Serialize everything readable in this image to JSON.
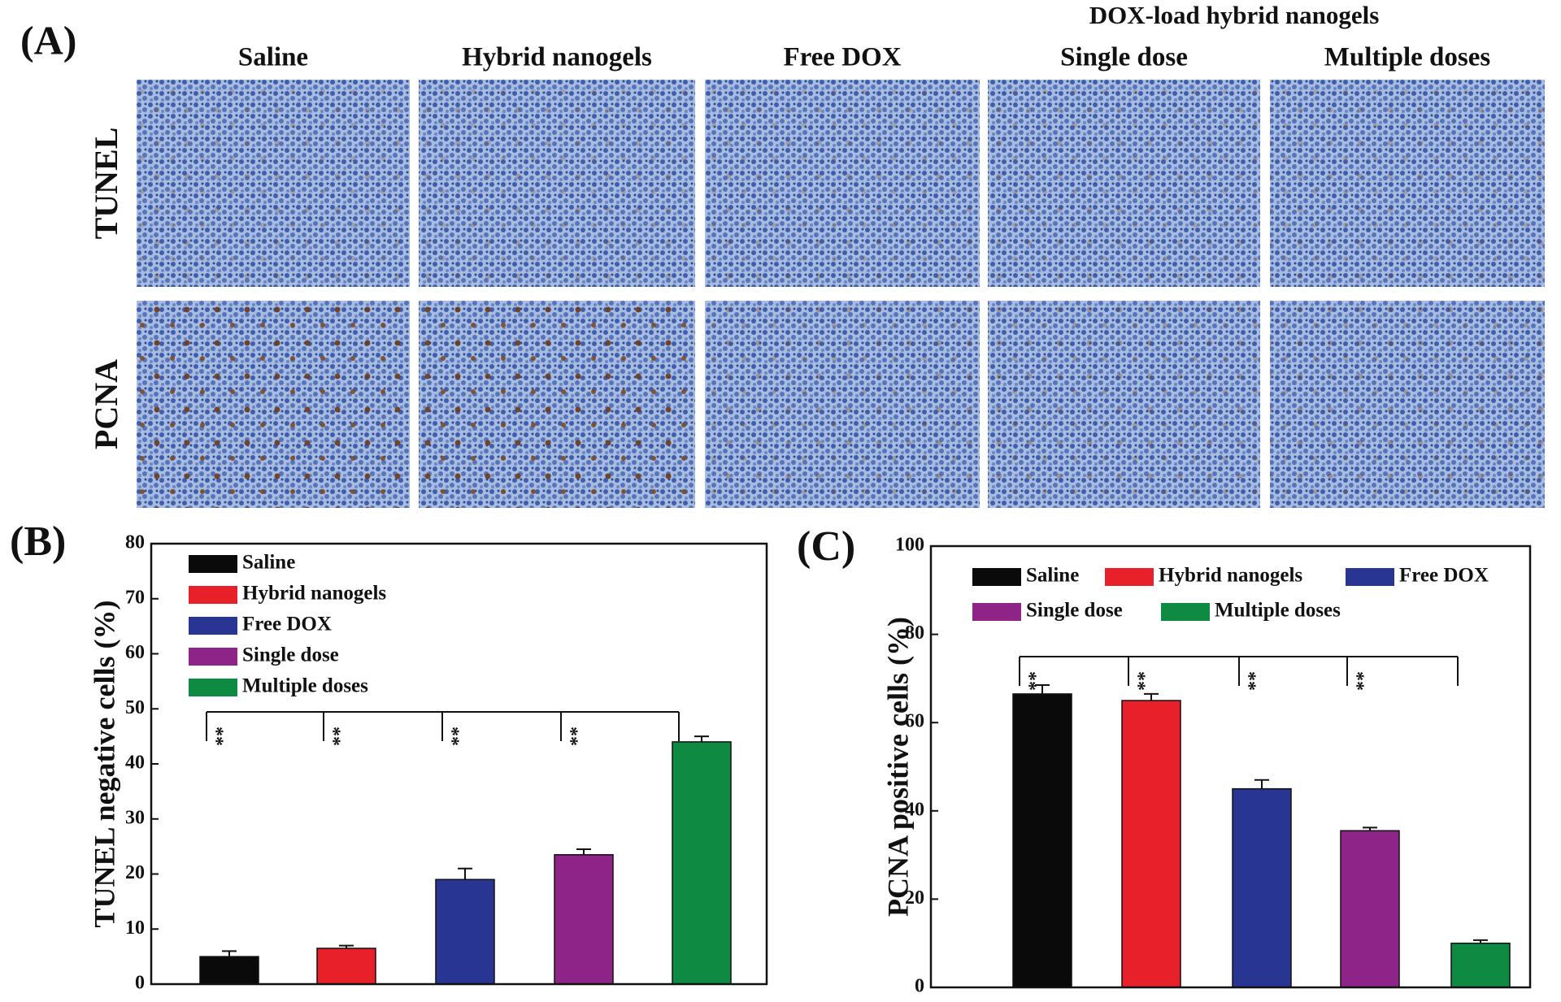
{
  "panel_a": {
    "label": "(A)",
    "group_title": "DOX-load hybrid nanogels",
    "columns": [
      "Saline",
      "Hybrid nanogels",
      "Free DOX",
      "Single dose",
      "Multiple doses"
    ],
    "rows": [
      "TUNEL",
      "PCNA"
    ]
  },
  "chart_data": [
    {
      "type": "bar",
      "panel_label": "(B)",
      "ylabel": "TUNEL negative cells (%)",
      "ylim": [
        0,
        80
      ],
      "yticks": [
        0,
        10,
        20,
        30,
        40,
        50,
        60,
        70,
        80
      ],
      "legend": "upper left",
      "significance": [
        "**",
        "**",
        "**",
        "**"
      ],
      "series": [
        {
          "name": "Saline",
          "color": "#0a0a0a",
          "values": [
            5
          ],
          "errors": [
            1
          ]
        },
        {
          "name": "Hybrid nanogels",
          "color": "#e8202a",
          "values": [
            6.5
          ],
          "errors": [
            0.5
          ]
        },
        {
          "name": "Free DOX",
          "color": "#283593",
          "values": [
            19
          ],
          "errors": [
            2
          ]
        },
        {
          "name": "Single dose",
          "color": "#8e2487",
          "values": [
            23.5
          ],
          "errors": [
            1
          ]
        },
        {
          "name": "Multiple doses",
          "color": "#0f8a43",
          "values": [
            44
          ],
          "errors": [
            1
          ]
        }
      ]
    },
    {
      "type": "bar",
      "panel_label": "(C)",
      "ylabel": "PCNA positive cells (%)",
      "ylim": [
        0,
        100
      ],
      "yticks": [
        0,
        20,
        40,
        60,
        80,
        100
      ],
      "legend": "upper left",
      "significance": [
        "**",
        "**",
        "**",
        "**"
      ],
      "series": [
        {
          "name": "Saline",
          "color": "#0a0a0a",
          "values": [
            66.5
          ],
          "errors": [
            2
          ]
        },
        {
          "name": "Hybrid nanogels",
          "color": "#e8202a",
          "values": [
            65
          ],
          "errors": [
            1.5
          ]
        },
        {
          "name": "Free DOX",
          "color": "#283593",
          "values": [
            45
          ],
          "errors": [
            2
          ]
        },
        {
          "name": "Single dose",
          "color": "#8e2487",
          "values": [
            35.5
          ],
          "errors": [
            0.7
          ]
        },
        {
          "name": "Multiple doses",
          "color": "#0f8a43",
          "values": [
            10
          ],
          "errors": [
            0.7
          ]
        }
      ]
    }
  ]
}
